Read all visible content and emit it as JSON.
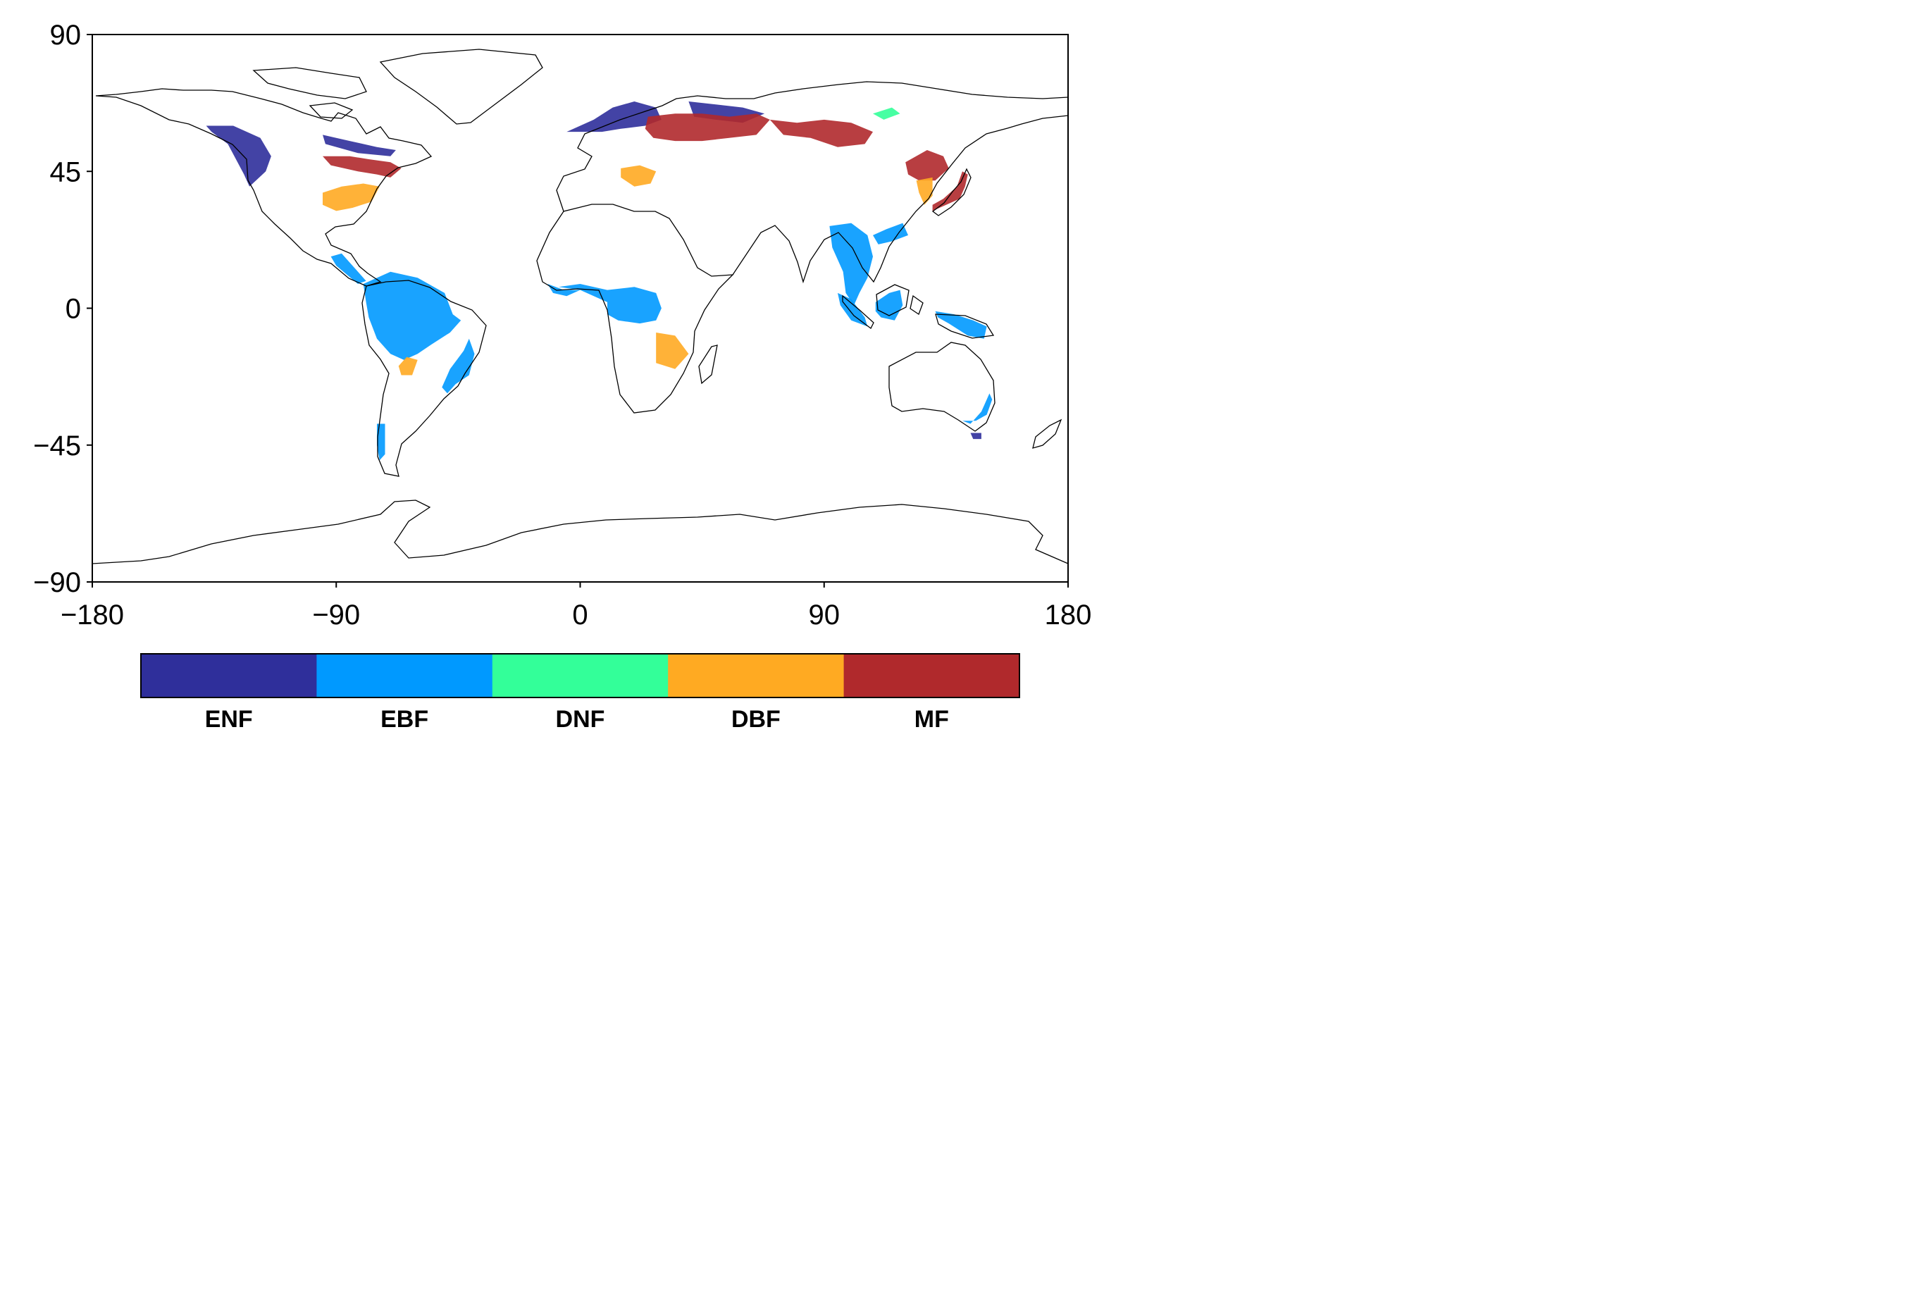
{
  "map": {
    "projection": "plate-carree",
    "lon_range": [
      -180,
      180
    ],
    "lat_range": [
      -90,
      90
    ],
    "x_ticks": [
      {
        "value": -180,
        "label": "−180"
      },
      {
        "value": -90,
        "label": "−90"
      },
      {
        "value": 0,
        "label": "0"
      },
      {
        "value": 90,
        "label": "90"
      },
      {
        "value": 180,
        "label": "180"
      }
    ],
    "y_ticks": [
      {
        "value": 90,
        "label": "90"
      },
      {
        "value": 45,
        "label": "45"
      },
      {
        "value": 0,
        "label": "0"
      },
      {
        "value": -45,
        "label": "−45"
      },
      {
        "value": -90,
        "label": "−90"
      }
    ],
    "coastline_color": "#000000",
    "background": "#ffffff"
  },
  "legend": {
    "placement": "bottom",
    "classes": [
      {
        "label": "ENF",
        "color": "#2f2f9b"
      },
      {
        "label": "EBF",
        "color": "#0099ff"
      },
      {
        "label": "DNF",
        "color": "#33ff99"
      },
      {
        "label": "DBF",
        "color": "#ffaa22"
      },
      {
        "label": "MF",
        "color": "#b0292c"
      }
    ]
  },
  "regions": [
    {
      "class": "EBF",
      "area": "Amazon basin",
      "points": [
        [
          -80,
          8
        ],
        [
          -70,
          12
        ],
        [
          -60,
          10
        ],
        [
          -50,
          5
        ],
        [
          -47,
          -2
        ],
        [
          -44,
          -4
        ],
        [
          -48,
          -8
        ],
        [
          -55,
          -12
        ],
        [
          -60,
          -15
        ],
        [
          -65,
          -17
        ],
        [
          -70,
          -15
        ],
        [
          -75,
          -10
        ],
        [
          -78,
          -3
        ],
        [
          -79,
          2
        ]
      ]
    },
    {
      "class": "EBF",
      "area": "Congo basin",
      "points": [
        [
          -8,
          7
        ],
        [
          0,
          8
        ],
        [
          10,
          6
        ],
        [
          20,
          7
        ],
        [
          28,
          5
        ],
        [
          30,
          0
        ],
        [
          28,
          -4
        ],
        [
          22,
          -5
        ],
        [
          14,
          -4
        ],
        [
          10,
          -2
        ],
        [
          10,
          2
        ],
        [
          0,
          6
        ]
      ]
    },
    {
      "class": "EBF",
      "area": "Southeast Asia",
      "points": [
        [
          92,
          27
        ],
        [
          100,
          28
        ],
        [
          106,
          24
        ],
        [
          108,
          17
        ],
        [
          106,
          10
        ],
        [
          103,
          5
        ],
        [
          101,
          1
        ],
        [
          98,
          5
        ],
        [
          97,
          12
        ],
        [
          93,
          20
        ]
      ]
    },
    {
      "class": "EBF",
      "area": "Indonesia",
      "points": [
        [
          95,
          5
        ],
        [
          100,
          3
        ],
        [
          105,
          -3
        ],
        [
          106,
          -6
        ],
        [
          100,
          -4
        ],
        [
          96,
          1
        ]
      ]
    },
    {
      "class": "EBF",
      "area": "Borneo",
      "points": [
        [
          109,
          2
        ],
        [
          114,
          5
        ],
        [
          118,
          6
        ],
        [
          119,
          1
        ],
        [
          116,
          -4
        ],
        [
          111,
          -3
        ],
        [
          109,
          -1
        ]
      ]
    },
    {
      "class": "EBF",
      "area": "New Guinea",
      "points": [
        [
          131,
          -1
        ],
        [
          138,
          -2
        ],
        [
          145,
          -4
        ],
        [
          150,
          -6
        ],
        [
          149,
          -10
        ],
        [
          143,
          -9
        ],
        [
          136,
          -5
        ],
        [
          132,
          -3
        ]
      ]
    },
    {
      "class": "EBF",
      "area": "Central America",
      "points": [
        [
          -92,
          17
        ],
        [
          -88,
          18
        ],
        [
          -83,
          13
        ],
        [
          -79,
          9
        ],
        [
          -82,
          8
        ],
        [
          -86,
          11
        ],
        [
          -90,
          14
        ]
      ]
    },
    {
      "class": "EBF",
      "area": "Atlantic Forest",
      "points": [
        [
          -41,
          -10
        ],
        [
          -39,
          -15
        ],
        [
          -41,
          -22
        ],
        [
          -46,
          -25
        ],
        [
          -49,
          -28
        ],
        [
          -51,
          -26
        ],
        [
          -48,
          -20
        ],
        [
          -43,
          -14
        ]
      ]
    },
    {
      "class": "EBF",
      "area": "South China",
      "points": [
        [
          108,
          24
        ],
        [
          113,
          26
        ],
        [
          119,
          28
        ],
        [
          121,
          24
        ],
        [
          115,
          22
        ],
        [
          110,
          21
        ]
      ]
    },
    {
      "class": "EBF",
      "area": "SE Australia",
      "points": [
        [
          141,
          -37
        ],
        [
          146,
          -37
        ],
        [
          150,
          -35
        ],
        [
          152,
          -30
        ],
        [
          151,
          -28
        ],
        [
          148,
          -34
        ],
        [
          144,
          -38
        ]
      ]
    },
    {
      "class": "EBF",
      "area": "Chile",
      "points": [
        [
          -75,
          -38
        ],
        [
          -72,
          -38
        ],
        [
          -72,
          -48
        ],
        [
          -74,
          -50
        ],
        [
          -75,
          -45
        ]
      ]
    },
    {
      "class": "EBF",
      "area": "West Africa",
      "points": [
        [
          -12,
          8
        ],
        [
          -6,
          6
        ],
        [
          0,
          6
        ],
        [
          -5,
          4
        ],
        [
          -10,
          5
        ]
      ]
    },
    {
      "class": "ENF",
      "area": "Pacific Northwest",
      "points": [
        [
          -138,
          60
        ],
        [
          -128,
          60
        ],
        [
          -118,
          56
        ],
        [
          -114,
          50
        ],
        [
          -116,
          45
        ],
        [
          -122,
          40
        ],
        [
          -124,
          44
        ],
        [
          -130,
          54
        ],
        [
          -136,
          58
        ]
      ]
    },
    {
      "class": "ENF",
      "area": "Scandinavia",
      "points": [
        [
          -5,
          58
        ],
        [
          5,
          62
        ],
        [
          12,
          66
        ],
        [
          20,
          68
        ],
        [
          28,
          66
        ],
        [
          30,
          62
        ],
        [
          24,
          60
        ],
        [
          15,
          59
        ],
        [
          8,
          58
        ]
      ]
    },
    {
      "class": "ENF",
      "area": "Ural",
      "points": [
        [
          40,
          68
        ],
        [
          50,
          67
        ],
        [
          60,
          66
        ],
        [
          68,
          64
        ],
        [
          60,
          61
        ],
        [
          50,
          62
        ],
        [
          42,
          63
        ]
      ]
    },
    {
      "class": "ENF",
      "area": "Canadian shield",
      "points": [
        [
          -95,
          57
        ],
        [
          -85,
          55
        ],
        [
          -75,
          53
        ],
        [
          -68,
          52
        ],
        [
          -70,
          50
        ],
        [
          -82,
          51
        ],
        [
          -94,
          54
        ]
      ]
    },
    {
      "class": "ENF",
      "area": "Tasmania",
      "points": [
        [
          144,
          -41
        ],
        [
          148,
          -41
        ],
        [
          148,
          -43
        ],
        [
          145,
          -43
        ]
      ]
    },
    {
      "class": "MF",
      "area": "Eastern North America",
      "points": [
        [
          -95,
          50
        ],
        [
          -85,
          50
        ],
        [
          -78,
          49
        ],
        [
          -70,
          48
        ],
        [
          -66,
          46
        ],
        [
          -70,
          43
        ],
        [
          -75,
          44
        ],
        [
          -82,
          45
        ],
        [
          -92,
          47
        ]
      ]
    },
    {
      "class": "MF",
      "area": "European Russia",
      "points": [
        [
          25,
          63
        ],
        [
          35,
          64
        ],
        [
          45,
          64
        ],
        [
          55,
          63
        ],
        [
          65,
          64
        ],
        [
          70,
          62
        ],
        [
          65,
          57
        ],
        [
          55,
          56
        ],
        [
          45,
          55
        ],
        [
          35,
          55
        ],
        [
          27,
          56
        ],
        [
          24,
          59
        ]
      ]
    },
    {
      "class": "MF",
      "area": "Siberia",
      "points": [
        [
          70,
          62
        ],
        [
          80,
          61
        ],
        [
          90,
          62
        ],
        [
          100,
          61
        ],
        [
          108,
          58
        ],
        [
          105,
          54
        ],
        [
          95,
          53
        ],
        [
          85,
          56
        ],
        [
          75,
          57
        ]
      ]
    },
    {
      "class": "MF",
      "area": "Manchuria",
      "points": [
        [
          120,
          48
        ],
        [
          128,
          52
        ],
        [
          134,
          50
        ],
        [
          136,
          46
        ],
        [
          131,
          42
        ],
        [
          125,
          42
        ],
        [
          121,
          44
        ]
      ]
    },
    {
      "class": "MF",
      "area": "Japan",
      "points": [
        [
          130,
          32
        ],
        [
          135,
          34
        ],
        [
          140,
          36
        ],
        [
          142,
          40
        ],
        [
          143,
          44
        ],
        [
          141,
          45
        ],
        [
          139,
          40
        ],
        [
          134,
          36
        ],
        [
          130,
          34
        ]
      ]
    },
    {
      "class": "DBF",
      "area": "Eastern USA",
      "points": [
        [
          -95,
          38
        ],
        [
          -88,
          40
        ],
        [
          -80,
          41
        ],
        [
          -74,
          40
        ],
        [
          -77,
          35
        ],
        [
          -84,
          33
        ],
        [
          -90,
          32
        ],
        [
          -95,
          34
        ]
      ]
    },
    {
      "class": "DBF",
      "area": "Balkans",
      "points": [
        [
          15,
          46
        ],
        [
          22,
          47
        ],
        [
          28,
          45
        ],
        [
          26,
          41
        ],
        [
          20,
          40
        ],
        [
          15,
          43
        ]
      ]
    },
    {
      "class": "DBF",
      "area": "Korea",
      "points": [
        [
          124,
          42
        ],
        [
          130,
          43
        ],
        [
          130,
          37
        ],
        [
          127,
          34
        ],
        [
          125,
          38
        ]
      ]
    },
    {
      "class": "DBF",
      "area": "Bolivia",
      "points": [
        [
          -64,
          -16
        ],
        [
          -60,
          -17
        ],
        [
          -62,
          -22
        ],
        [
          -66,
          -22
        ],
        [
          -67,
          -19
        ]
      ]
    },
    {
      "class": "DBF",
      "area": "Miombo",
      "points": [
        [
          28,
          -8
        ],
        [
          35,
          -9
        ],
        [
          40,
          -15
        ],
        [
          35,
          -20
        ],
        [
          28,
          -18
        ]
      ]
    },
    {
      "class": "DNF",
      "area": "Siberia",
      "points": [
        [
          108,
          64
        ],
        [
          115,
          66
        ],
        [
          118,
          64
        ],
        [
          112,
          62
        ]
      ]
    }
  ]
}
